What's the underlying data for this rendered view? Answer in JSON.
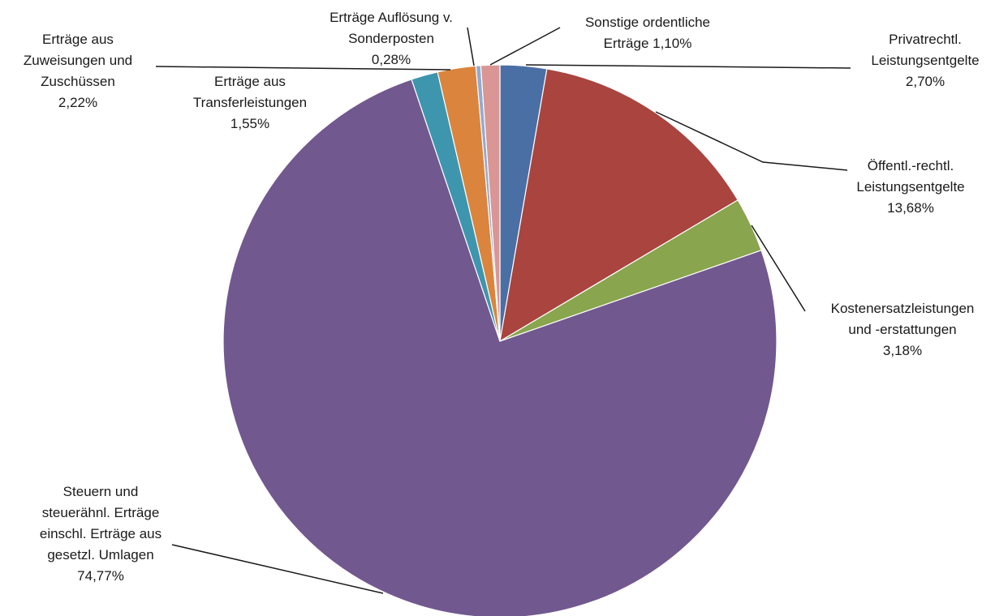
{
  "chart_data": {
    "type": "pie",
    "title": "",
    "start_angle_deg": 0,
    "direction": "clockwise",
    "slices": [
      {
        "label": [
          "Privatrechtl.",
          "Leistungsentgelte"
        ],
        "pct_text": "2,70%",
        "value": 2.7,
        "color": "#4a6fa5"
      },
      {
        "label": [
          "Öffentl.-rechtl.",
          "Leistungsentgelte"
        ],
        "pct_text": "13,68%",
        "value": 13.68,
        "color": "#a9443f"
      },
      {
        "label": [
          "Kostenersatzleistungen",
          "und -erstattungen"
        ],
        "pct_text": "3,18%",
        "value": 3.18,
        "color": "#89a54e"
      },
      {
        "label": [
          "Steuern und",
          "steuerähnl. Erträge",
          "einschl. Erträge aus",
          "gesetzl. Umlagen"
        ],
        "pct_text": "74,77%",
        "value": 74.77,
        "color": "#71588f"
      },
      {
        "label": [
          "Erträge aus",
          "Transferleistungen"
        ],
        "pct_text": "1,55%",
        "value": 1.55,
        "color": "#3d96ae"
      },
      {
        "label": [
          "Erträge aus",
          "Zuweisungen und",
          "Zuschüssen"
        ],
        "pct_text": "2,22%",
        "value": 2.22,
        "color": "#db843d"
      },
      {
        "label": [
          "Erträge Auflösung v.",
          "Sonderposten"
        ],
        "pct_text": "0,28%",
        "value": 0.28,
        "color": "#93a9cf"
      },
      {
        "label": [
          "Sonstige ordentliche",
          "Erträge"
        ],
        "pct_text": "1,10%",
        "value": 1.1,
        "color": "#d99694"
      }
    ]
  }
}
